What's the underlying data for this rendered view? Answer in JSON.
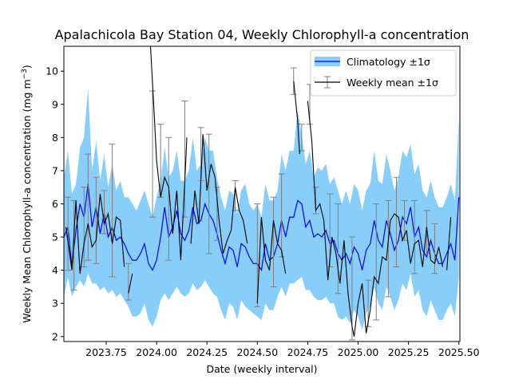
{
  "chart_data": {
    "type": "line",
    "title": "Apalachicola Bay Station 04, Weekly Chlorophyll-a concentration",
    "xlabel": "Date (weekly interval)",
    "ylabel": "Weekly Mean Chlorophyll-a concentration (mg m",
    "ylabel_superscript": "−3",
    "ylabel_close": ")",
    "xlim": [
      2023.54,
      2025.505
    ],
    "ylim": [
      1.85,
      10.75
    ],
    "x_ticks": [
      2023.75,
      2024.0,
      2024.25,
      2024.5,
      2024.75,
      2025.0,
      2025.25,
      2025.5
    ],
    "x_tick_labels": [
      "2023.75",
      "2024.00",
      "2024.25",
      "2024.50",
      "2024.75",
      "2025.00",
      "2025.25",
      "2025.50"
    ],
    "y_ticks": [
      2,
      3,
      4,
      5,
      6,
      7,
      8,
      9,
      10
    ],
    "y_tick_labels": [
      "2",
      "3",
      "4",
      "5",
      "6",
      "7",
      "8",
      "9",
      "10"
    ],
    "grid": false,
    "legend_position": "top-right",
    "colors": {
      "band": "#87cefa",
      "climatology_line": "#0000ff",
      "weekly_line": "#000000",
      "error_bar": "#808080"
    },
    "series": [
      {
        "name": "Climatology ±1σ",
        "style": "band",
        "x": [
          2023.54,
          2023.56,
          2023.58,
          2023.6,
          2023.62,
          2023.64,
          2023.66,
          2023.68,
          2023.7,
          2023.72,
          2023.74,
          2023.76,
          2023.78,
          2023.8,
          2023.82,
          2023.84,
          2023.86,
          2023.88,
          2023.9,
          2023.92,
          2023.94,
          2023.96,
          2023.98,
          2024.0,
          2024.02,
          2024.04,
          2024.06,
          2024.08,
          2024.1,
          2024.12,
          2024.14,
          2024.16,
          2024.18,
          2024.2,
          2024.22,
          2024.24,
          2024.26,
          2024.28,
          2024.3,
          2024.32,
          2024.34,
          2024.36,
          2024.38,
          2024.4,
          2024.42,
          2024.44,
          2024.46,
          2024.48,
          2024.5,
          2024.52,
          2024.54,
          2024.56,
          2024.58,
          2024.6,
          2024.62,
          2024.64,
          2024.66,
          2024.68,
          2024.7,
          2024.72,
          2024.74,
          2024.76,
          2024.78,
          2024.8,
          2024.82,
          2024.84,
          2024.86,
          2024.88,
          2024.9,
          2024.92,
          2024.94,
          2024.96,
          2024.98,
          2025.0,
          2025.02,
          2025.04,
          2025.06,
          2025.08,
          2025.1,
          2025.12,
          2025.14,
          2025.16,
          2025.18,
          2025.2,
          2025.22,
          2025.24,
          2025.26,
          2025.28,
          2025.3,
          2025.32,
          2025.34,
          2025.36,
          2025.38,
          2025.4,
          2025.42,
          2025.44,
          2025.46,
          2025.48,
          2025.5
        ],
        "mean": [
          5.0,
          5.3,
          4.1,
          5.2,
          6.0,
          5.6,
          6.6,
          5.3,
          5.9,
          5.1,
          5.7,
          5.0,
          5.3,
          4.9,
          5.0,
          4.8,
          4.5,
          4.3,
          4.3,
          4.5,
          4.8,
          4.2,
          4.0,
          4.3,
          5.0,
          5.9,
          5.0,
          5.3,
          5.8,
          5.1,
          4.9,
          5.2,
          5.9,
          5.4,
          5.5,
          6.0,
          5.7,
          5.5,
          5.1,
          4.6,
          4.2,
          4.7,
          4.6,
          4.1,
          4.8,
          4.7,
          4.4,
          4.2,
          4.2,
          4.0,
          4.8,
          4.3,
          4.4,
          4.8,
          5.5,
          5.0,
          5.6,
          5.6,
          6.1,
          6.0,
          5.3,
          5.5,
          5.0,
          5.1,
          5.0,
          5.2,
          4.8,
          4.9,
          4.5,
          4.3,
          4.5,
          4.2,
          4.7,
          4.5,
          4.0,
          4.6,
          4.8,
          5.5,
          4.9,
          4.7,
          5.5,
          5.1,
          4.6,
          4.9,
          5.6,
          5.4,
          5.9,
          5.0,
          5.3,
          4.6,
          4.4,
          4.9,
          4.5,
          4.2,
          4.2,
          4.5,
          4.8,
          4.3,
          6.2
        ],
        "upper": [
          6.8,
          7.6,
          6.3,
          6.6,
          7.7,
          8.0,
          9.5,
          7.0,
          7.9,
          6.7,
          7.5,
          6.5,
          7.2,
          6.4,
          6.7,
          6.2,
          6.2,
          6.0,
          5.8,
          6.1,
          6.4,
          6.0,
          5.6,
          6.2,
          6.7,
          7.7,
          6.8,
          7.0,
          7.6,
          6.7,
          6.7,
          7.0,
          8.0,
          7.0,
          7.2,
          8.0,
          7.6,
          7.6,
          6.8,
          6.2,
          5.8,
          6.4,
          6.3,
          5.7,
          6.4,
          6.6,
          6.0,
          5.8,
          6.0,
          5.6,
          6.6,
          6.1,
          6.1,
          6.4,
          7.5,
          7.0,
          7.6,
          7.6,
          8.8,
          8.1,
          7.2,
          7.6,
          6.8,
          7.1,
          7.0,
          7.2,
          6.6,
          6.8,
          6.4,
          6.0,
          6.4,
          6.0,
          6.6,
          6.4,
          5.8,
          6.4,
          6.6,
          7.6,
          6.7,
          6.6,
          7.5,
          7.0,
          6.4,
          6.8,
          7.6,
          7.4,
          7.8,
          6.9,
          7.2,
          6.4,
          6.2,
          6.7,
          6.2,
          5.9,
          5.9,
          6.2,
          6.6,
          6.1,
          8.6
        ],
        "lower": [
          3.2,
          3.8,
          3.2,
          3.5,
          3.7,
          3.5,
          3.9,
          3.6,
          3.6,
          3.4,
          3.5,
          3.3,
          3.4,
          3.2,
          3.3,
          3.1,
          2.9,
          2.6,
          2.6,
          2.7,
          3.0,
          2.5,
          2.3,
          2.6,
          3.1,
          3.3,
          3.1,
          3.3,
          3.5,
          3.3,
          3.2,
          3.3,
          3.6,
          3.4,
          3.5,
          3.7,
          3.5,
          3.3,
          3.2,
          2.8,
          2.5,
          3.0,
          2.9,
          2.5,
          3.1,
          2.9,
          2.8,
          2.7,
          2.6,
          2.5,
          3.0,
          2.8,
          2.8,
          3.2,
          3.5,
          3.2,
          3.6,
          3.6,
          3.7,
          3.8,
          3.4,
          3.4,
          3.2,
          3.1,
          3.1,
          3.2,
          3.0,
          3.0,
          2.6,
          2.5,
          2.6,
          2.4,
          2.8,
          2.6,
          2.2,
          2.7,
          2.9,
          3.5,
          3.0,
          2.8,
          3.5,
          3.2,
          2.8,
          3.1,
          3.6,
          3.4,
          3.9,
          3.2,
          3.4,
          2.8,
          2.6,
          3.1,
          2.8,
          2.5,
          2.5,
          2.8,
          3.0,
          2.6,
          3.8
        ]
      },
      {
        "name": "Weekly mean ±1σ",
        "style": "line-errorbar",
        "segments": [
          [
            [
              2023.55,
              5.3
            ],
            [
              2023.58,
              4.0
            ],
            [
              2023.6,
              6.1
            ],
            [
              2023.62,
              3.9
            ],
            [
              2023.64,
              4.8
            ],
            [
              2023.66,
              5.4
            ],
            [
              2023.68,
              4.7
            ],
            [
              2023.7,
              4.9
            ],
            [
              2023.72,
              6.3
            ],
            [
              2023.74,
              5.4
            ],
            [
              2023.76,
              5.7
            ],
            [
              2023.78,
              4.8
            ],
            [
              2023.8,
              5.6
            ],
            [
              2023.82,
              5.5
            ],
            [
              2023.84,
              4.1
            ]
          ],
          [
            [
              2023.86,
              3.3
            ],
            [
              2023.88,
              3.9
            ]
          ],
          [
            [
              2023.97,
              10.75
            ],
            [
              2023.98,
              9.6
            ],
            [
              2023.99,
              8.5
            ],
            [
              2024.0,
              7.3
            ],
            [
              2024.02,
              6.2
            ],
            [
              2024.04,
              6.8
            ],
            [
              2024.06,
              6.5
            ],
            [
              2024.08,
              5.1
            ],
            [
              2024.1,
              6.4
            ],
            [
              2024.12,
              4.3
            ],
            [
              2024.14,
              6.7
            ],
            [
              2024.15,
              8.0
            ]
          ],
          [
            [
              2024.17,
              4.8
            ],
            [
              2024.19,
              6.4
            ],
            [
              2024.21,
              5.4
            ],
            [
              2024.23,
              8.1
            ],
            [
              2024.25,
              6.4
            ],
            [
              2024.27,
              7.2
            ],
            [
              2024.29,
              6.8
            ],
            [
              2024.31,
              5.5
            ],
            [
              2024.33,
              4.5
            ],
            [
              2024.35,
              4.9
            ],
            [
              2024.37,
              5.2
            ],
            [
              2024.39,
              6.5
            ],
            [
              2024.41,
              5.8
            ],
            [
              2024.43,
              5.5
            ],
            [
              2024.45,
              4.8
            ]
          ],
          [
            [
              2024.5,
              3.0
            ],
            [
              2024.52,
              5.6
            ],
            [
              2024.54,
              4.3
            ],
            [
              2024.56,
              4.0
            ],
            [
              2024.58,
              5.5
            ],
            [
              2024.6,
              4.8
            ],
            [
              2024.62,
              4.6
            ],
            [
              2024.64,
              3.9
            ]
          ],
          [
            [
              2024.68,
              9.7
            ],
            [
              2024.7,
              8.5
            ],
            [
              2024.71,
              7.5
            ]
          ],
          [
            [
              2024.75,
              9.1
            ],
            [
              2024.77,
              7.9
            ],
            [
              2024.79,
              5.8
            ],
            [
              2024.81,
              6.0
            ],
            [
              2024.83,
              5.5
            ],
            [
              2024.85,
              3.7
            ],
            [
              2024.87,
              5.0
            ],
            [
              2024.89,
              4.5
            ],
            [
              2024.91,
              3.6
            ],
            [
              2024.93,
              4.9
            ],
            [
              2024.95,
              3.3
            ],
            [
              2024.97,
              2.3
            ],
            [
              2024.98,
              2.0
            ],
            [
              2025.0,
              3.0
            ],
            [
              2025.02,
              3.6
            ],
            [
              2025.04,
              2.1
            ],
            [
              2025.06,
              2.8
            ],
            [
              2025.08,
              3.8
            ],
            [
              2025.1,
              3.6
            ],
            [
              2025.12,
              4.4
            ],
            [
              2025.14,
              4.3
            ],
            [
              2025.16,
              5.5
            ],
            [
              2025.18,
              5.7
            ],
            [
              2025.2,
              5.6
            ],
            [
              2025.22,
              4.9
            ],
            [
              2025.24,
              5.2
            ],
            [
              2025.26,
              4.2
            ],
            [
              2025.28,
              4.8
            ],
            [
              2025.3,
              4.9
            ],
            [
              2025.32,
              4.1
            ],
            [
              2025.34,
              5.3
            ],
            [
              2025.36,
              4.3
            ],
            [
              2025.38,
              4.2
            ],
            [
              2025.4,
              4.7
            ],
            [
              2025.42,
              4.1
            ]
          ],
          [
            [
              2025.44,
              4.0
            ],
            [
              2025.46,
              5.6
            ]
          ]
        ],
        "error_bars": [
          [
            2023.56,
            4.0,
            6.2
          ],
          [
            2023.59,
            3.4,
            6.1
          ],
          [
            2023.64,
            4.1,
            6.5
          ],
          [
            2023.66,
            4.3,
            7.5
          ],
          [
            2023.7,
            4.2,
            6.8
          ],
          [
            2023.74,
            5.1,
            6.4
          ],
          [
            2023.78,
            3.8,
            7.8
          ],
          [
            2023.86,
            3.1,
            4.2
          ],
          [
            2023.98,
            5.6,
            9.4
          ],
          [
            2024.02,
            6.2,
            8.4
          ],
          [
            2024.06,
            4.3,
            8.0
          ],
          [
            2024.14,
            5.6,
            9.1
          ],
          [
            2024.22,
            6.7,
            8.3
          ],
          [
            2024.26,
            4.5,
            8.1
          ],
          [
            2024.3,
            4.9,
            6.5
          ],
          [
            2024.39,
            5.8,
            6.7
          ],
          [
            2024.5,
            2.9,
            6.0
          ],
          [
            2024.58,
            3.5,
            6.2
          ],
          [
            2024.62,
            4.4,
            6.9
          ],
          [
            2024.68,
            9.3,
            10.1
          ],
          [
            2024.72,
            7.6,
            8.4
          ],
          [
            2024.76,
            8.4,
            9.6
          ],
          [
            2024.79,
            5.7,
            6.5
          ],
          [
            2024.86,
            4.1,
            6.3
          ],
          [
            2024.9,
            3.3,
            6.0
          ],
          [
            2024.97,
            1.9,
            5.0
          ],
          [
            2025.05,
            2.3,
            3.7
          ],
          [
            2025.09,
            2.5,
            6.0
          ],
          [
            2025.15,
            3.2,
            6.1
          ],
          [
            2025.19,
            4.1,
            6.8
          ],
          [
            2025.23,
            4.9,
            6.1
          ],
          [
            2025.28,
            3.9,
            6.1
          ],
          [
            2025.34,
            4.5,
            5.8
          ],
          [
            2025.38,
            3.9,
            5.4
          ]
        ]
      }
    ]
  }
}
